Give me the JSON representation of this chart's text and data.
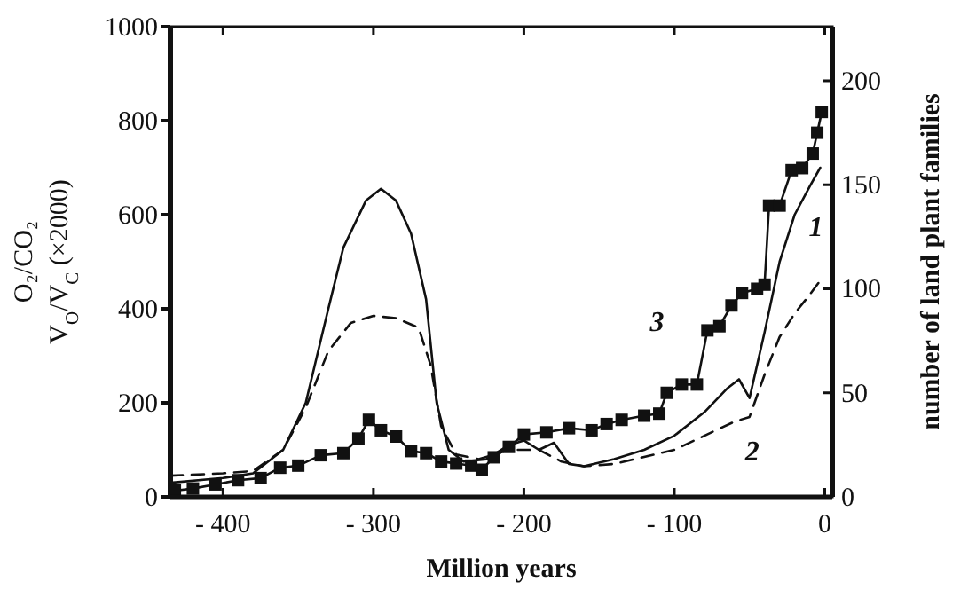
{
  "chart_data": {
    "type": "line",
    "xlabel": "Million years",
    "ylabel": "O₂/CO₂\nV$_{O}$/V$_{C}$ (×2000)",
    "y2label": "number of land plant families",
    "xlim": [
      -435,
      5
    ],
    "xticks": [
      {
        "value": -400,
        "label": "- 400"
      },
      {
        "value": -300,
        "label": "- 300"
      },
      {
        "value": -200,
        "label": "- 200"
      },
      {
        "value": -100,
        "label": "- 100"
      },
      0
    ],
    "ylim": [
      0,
      1000
    ],
    "yticks": [
      0,
      200,
      400,
      600,
      800,
      1000
    ],
    "y2lim": [
      0,
      226
    ],
    "y2ticks": [
      0,
      50,
      100,
      150,
      200
    ],
    "legend": false,
    "grid": false,
    "series": [
      {
        "name": "1",
        "color": "#111111",
        "line_style": "solid",
        "marker": "none",
        "x": [
          -435,
          -400,
          -380,
          -360,
          -345,
          -330,
          -320,
          -305,
          -295,
          -285,
          -275,
          -265,
          -258,
          -250,
          -240,
          -225,
          -210,
          -200,
          -190,
          -180,
          -170,
          -160,
          -140,
          -120,
          -100,
          -80,
          -65,
          -57,
          -50,
          -40,
          -30,
          -20,
          -10,
          -3
        ],
        "values": [
          30,
          40,
          50,
          100,
          200,
          400,
          530,
          630,
          655,
          630,
          560,
          420,
          200,
          100,
          75,
          80,
          110,
          120,
          100,
          115,
          70,
          65,
          80,
          100,
          130,
          180,
          230,
          250,
          210,
          350,
          500,
          600,
          660,
          700
        ]
      },
      {
        "name": "2",
        "color": "#111111",
        "line_style": "dashed",
        "marker": "none",
        "x": [
          -435,
          -400,
          -380,
          -360,
          -345,
          -330,
          -315,
          -300,
          -285,
          -270,
          -262,
          -255,
          -245,
          -230,
          -210,
          -190,
          -175,
          -160,
          -140,
          -120,
          -100,
          -80,
          -60,
          -50,
          -40,
          -30,
          -20,
          -10,
          -3
        ],
        "values": [
          45,
          50,
          55,
          100,
          190,
          310,
          370,
          385,
          380,
          360,
          280,
          150,
          90,
          80,
          100,
          100,
          75,
          65,
          70,
          85,
          100,
          130,
          160,
          170,
          260,
          340,
          390,
          430,
          460
        ]
      },
      {
        "name": "3",
        "axis": "y2",
        "color": "#111111",
        "line_style": "solid",
        "marker": "square",
        "x": [
          -432,
          -420,
          -405,
          -390,
          -375,
          -362,
          -350,
          -335,
          -320,
          -310,
          -303,
          -295,
          -285,
          -275,
          -265,
          -255,
          -245,
          -235,
          -228,
          -220,
          -210,
          -200,
          -185,
          -170,
          -155,
          -145,
          -135,
          -120,
          -110,
          -105,
          -95,
          -85,
          -78,
          -70,
          -62,
          -55,
          -45,
          -40,
          -37,
          -30,
          -22,
          -15,
          -8,
          -5,
          -2
        ],
        "values": [
          3,
          4,
          6,
          8,
          9,
          14,
          15,
          20,
          21,
          28,
          37,
          32,
          29,
          22,
          21,
          17,
          16,
          15,
          13,
          19,
          24,
          30,
          31,
          33,
          32,
          35,
          37,
          39,
          40,
          50,
          54,
          54,
          80,
          82,
          92,
          98,
          100,
          102,
          140,
          140,
          157,
          158,
          165,
          175,
          185
        ]
      }
    ]
  }
}
